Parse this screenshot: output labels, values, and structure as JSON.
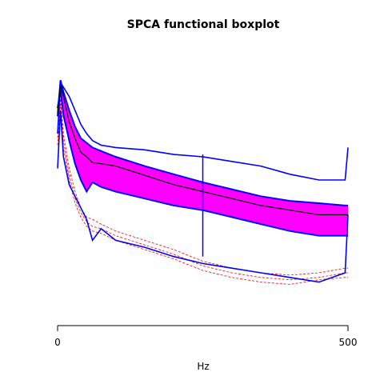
{
  "chart_data": {
    "type": "line",
    "title": "SPCA functional boxplot",
    "xlabel": "Hz",
    "ylabel": "",
    "xlim": [
      0,
      500
    ],
    "ylim": [
      -1,
      1
    ],
    "x_ticks": [
      0,
      500
    ],
    "x_tick_labels": [
      "0",
      "500"
    ],
    "y_axis_shown": false,
    "grid": false,
    "colors": {
      "central_region": "#ff00ff",
      "envelope": "#0000ff",
      "median": "#000000",
      "outliers": "#ff0000"
    },
    "x": [
      0,
      5,
      10,
      20,
      30,
      40,
      50,
      60,
      75,
      100,
      150,
      200,
      250,
      300,
      350,
      400,
      450,
      495,
      500
    ],
    "series": [
      {
        "kind": "upper-whisker",
        "values": [
          0.4,
          0.84,
          0.8,
          0.72,
          0.6,
          0.48,
          0.4,
          0.34,
          0.3,
          0.28,
          0.26,
          0.22,
          0.2,
          0.16,
          0.12,
          0.05,
          0.0,
          0.0,
          0.28
        ]
      },
      {
        "kind": "central-upper",
        "values": [
          0.55,
          0.86,
          0.76,
          0.6,
          0.46,
          0.36,
          0.32,
          0.28,
          0.25,
          0.2,
          0.12,
          0.05,
          -0.02,
          -0.08,
          -0.14,
          -0.18,
          -0.2,
          -0.22,
          -0.22
        ]
      },
      {
        "kind": "median",
        "values": [
          0.58,
          0.82,
          0.72,
          0.5,
          0.36,
          0.24,
          0.2,
          0.15,
          0.14,
          0.12,
          0.04,
          -0.04,
          -0.1,
          -0.16,
          -0.22,
          -0.26,
          -0.3,
          -0.3,
          -0.3
        ]
      },
      {
        "kind": "central-lower",
        "values": [
          0.62,
          0.78,
          0.56,
          0.34,
          0.14,
          0.0,
          -0.1,
          -0.02,
          -0.06,
          -0.1,
          -0.16,
          -0.22,
          -0.26,
          -0.32,
          -0.38,
          -0.44,
          -0.48,
          -0.48,
          -0.48
        ]
      },
      {
        "kind": "lower-whisker",
        "values": [
          0.1,
          0.6,
          0.2,
          -0.04,
          -0.14,
          -0.24,
          -0.34,
          -0.52,
          -0.42,
          -0.52,
          -0.58,
          -0.66,
          -0.72,
          -0.76,
          -0.8,
          -0.84,
          -0.88,
          -0.8,
          -0.3
        ]
      },
      {
        "kind": "outlier",
        "values": [
          0.4,
          0.72,
          0.4,
          0.1,
          -0.1,
          -0.24,
          -0.32,
          -0.34,
          -0.38,
          -0.44,
          -0.52,
          -0.6,
          -0.7,
          -0.76,
          -0.8,
          -0.82,
          -0.8,
          -0.76,
          -0.76
        ]
      },
      {
        "kind": "outlier",
        "values": [
          0.36,
          0.7,
          0.34,
          0.04,
          -0.16,
          -0.28,
          -0.36,
          -0.4,
          -0.42,
          -0.48,
          -0.56,
          -0.64,
          -0.74,
          -0.8,
          -0.84,
          -0.86,
          -0.84,
          -0.8,
          -0.8
        ]
      },
      {
        "kind": "outlier",
        "values": [
          0.3,
          0.66,
          0.28,
          0.0,
          -0.2,
          -0.32,
          -0.4,
          -0.44,
          -0.46,
          -0.52,
          -0.6,
          -0.68,
          -0.78,
          -0.84,
          -0.88,
          -0.9,
          -0.86,
          -0.84,
          -0.84
        ]
      }
    ],
    "vertical_spike": {
      "x": 250,
      "y_from": -0.66,
      "y_to": 0.22
    }
  }
}
